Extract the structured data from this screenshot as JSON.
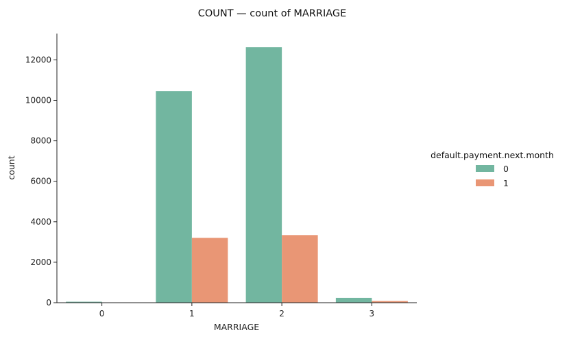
{
  "chart_data": {
    "type": "bar",
    "title": "COUNT — count of MARRIAGE",
    "xlabel": "MARRIAGE",
    "ylabel": "count",
    "categories": [
      "0",
      "1",
      "2",
      "3"
    ],
    "ylim": [
      0,
      13300
    ],
    "yticks": [
      0,
      2000,
      4000,
      6000,
      8000,
      10000,
      12000
    ],
    "grid": false,
    "legend": {
      "title": "default.payment.next.month",
      "placement": "right"
    },
    "series": [
      {
        "name": "0",
        "color": "#72b6a0",
        "values": [
          49,
          10453,
          12623,
          239
        ]
      },
      {
        "name": "1",
        "color": "#e99675",
        "values": [
          5,
          3206,
          3341,
          84
        ]
      }
    ]
  }
}
